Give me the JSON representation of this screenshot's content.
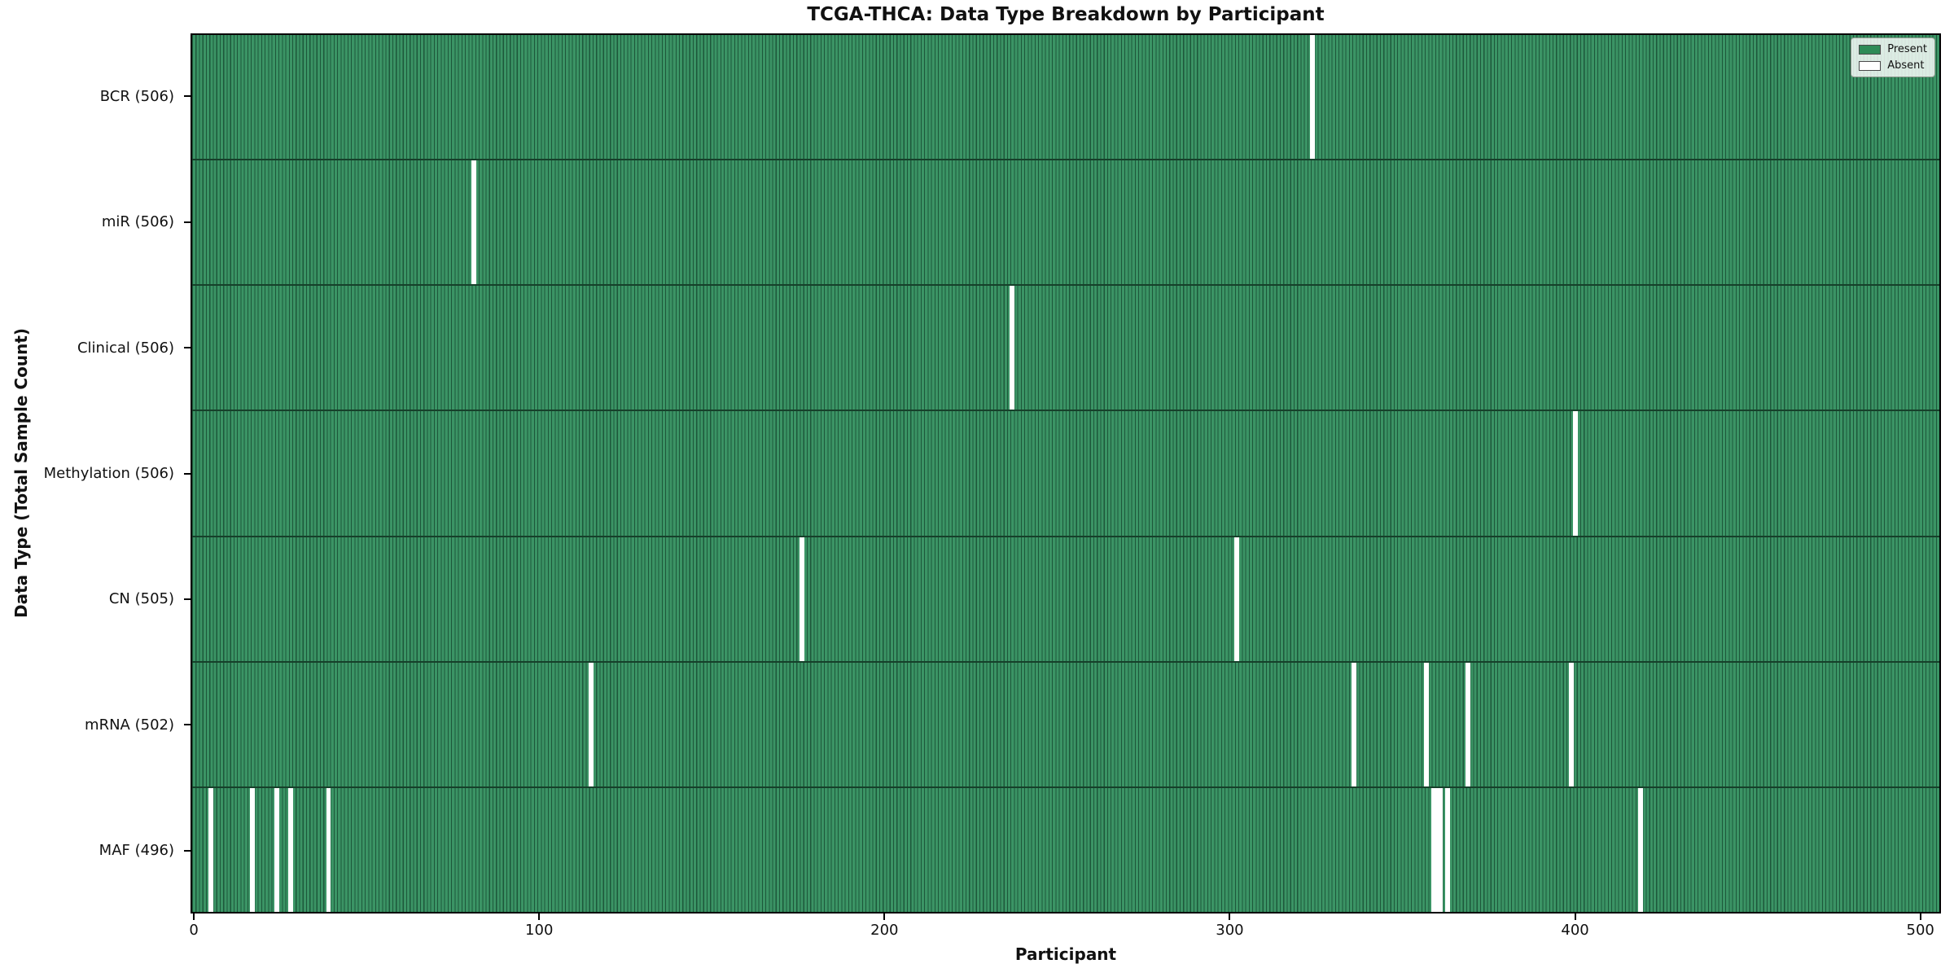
{
  "title": "TCGA-THCA: Data Type Breakdown by Participant",
  "x_axis": {
    "label": "Participant",
    "ticks": [
      0,
      100,
      200,
      300,
      400,
      500
    ]
  },
  "y_axis": {
    "label": "Data Type (Total Sample Count)"
  },
  "legend": {
    "items": [
      {
        "label": "Present",
        "color": "#2e8b57"
      },
      {
        "label": "Absent",
        "color": "#ffffff"
      }
    ]
  },
  "colors": {
    "bar_fill": "#3b9465",
    "bar_edge": "#1d573a",
    "row_separator": "#16402a",
    "absent": "#ffffff",
    "plot_border": "#000000",
    "legend_bg": "#f2f5f2"
  },
  "chart_data": {
    "type": "heatmap",
    "title": "TCGA-THCA: Data Type Breakdown by Participant",
    "xlabel": "Participant",
    "ylabel": "Data Type (Total Sample Count)",
    "x_range": [
      0,
      506
    ],
    "total_participants": 506,
    "legend_position": "upper right",
    "rows": [
      {
        "name": "BCR",
        "label": "BCR (506)",
        "total_samples": 506,
        "absent_participants": [
          324
        ]
      },
      {
        "name": "miR",
        "label": "miR (506)",
        "total_samples": 506,
        "absent_participants": [
          81
        ]
      },
      {
        "name": "Clinical",
        "label": "Clinical (506)",
        "total_samples": 506,
        "absent_participants": [
          237
        ]
      },
      {
        "name": "Methylation",
        "label": "Methylation (506)",
        "total_samples": 506,
        "absent_participants": [
          400
        ]
      },
      {
        "name": "CN",
        "label": "CN (505)",
        "total_samples": 505,
        "absent_participants": [
          176,
          302
        ]
      },
      {
        "name": "mRNA",
        "label": "mRNA (502)",
        "total_samples": 502,
        "absent_participants": [
          115,
          336,
          357,
          369,
          399
        ]
      },
      {
        "name": "MAF",
        "label": "MAF (496)",
        "total_samples": 496,
        "absent_participants": [
          5,
          17,
          24,
          28,
          39,
          359,
          360,
          361,
          363,
          419
        ]
      }
    ]
  }
}
